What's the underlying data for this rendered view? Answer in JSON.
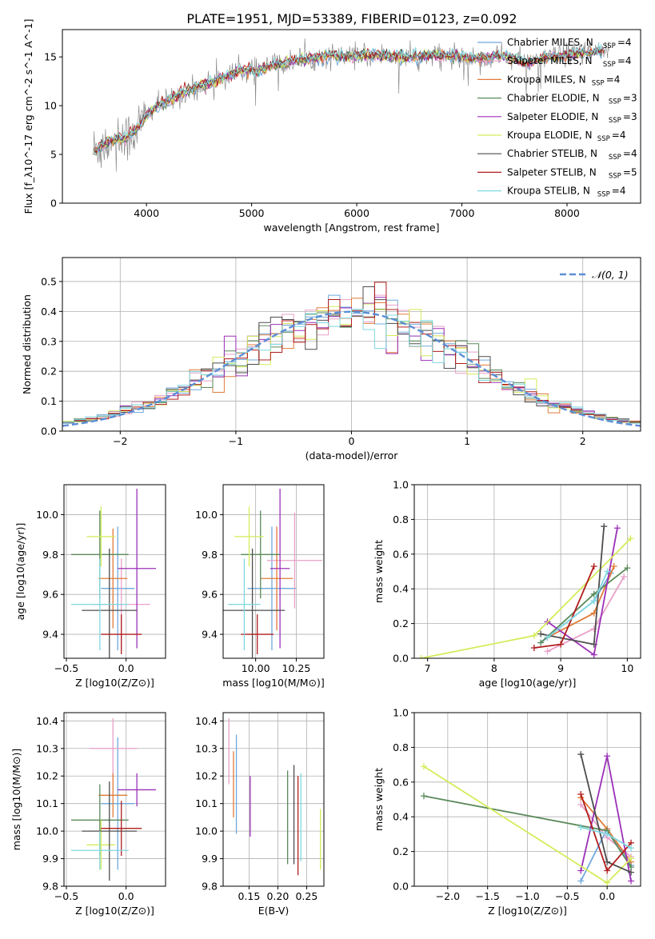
{
  "figure": {
    "title": "PLATE=1951, MJD=53389, FIBERID=0123, z=0.092"
  },
  "models": [
    {
      "name": "Chabrier MILES",
      "nssp": "4",
      "color": "#6fa8dc"
    },
    {
      "name": "Salpeter MILES",
      "nssp": "4",
      "color": "#e8a0c8"
    },
    {
      "name": "Kroupa MILES",
      "nssp": "4",
      "color": "#e07b39"
    },
    {
      "name": "Chabrier ELODIE",
      "nssp": "3",
      "color": "#5a8a5a"
    },
    {
      "name": "Salpeter ELODIE",
      "nssp": "3",
      "color": "#9b30b8"
    },
    {
      "name": "Kroupa ELODIE",
      "nssp": "4",
      "color": "#d4ec5a"
    },
    {
      "name": "Chabrier STELIB",
      "nssp": "4",
      "color": "#4d4d4d"
    },
    {
      "name": "Salpeter STELIB",
      "nssp": "5",
      "color": "#b01c1c"
    },
    {
      "name": "Kroupa STELIB",
      "nssp": "4",
      "color": "#7fd8e0"
    }
  ],
  "chart_data": [
    {
      "id": "spectrum",
      "type": "line",
      "xlabel": "wavelength [Angstrom, rest frame]",
      "ylabel": "Flux [f_λ10^-17 erg cm^-2 s^-1 A^-1]",
      "xlim": [
        3200,
        8700
      ],
      "ylim": [
        0,
        17.8
      ],
      "xticks": [
        4000,
        5000,
        6000,
        7000,
        8000
      ],
      "yticks": [
        0,
        5,
        10,
        15
      ],
      "grid": false,
      "legend": "top-right",
      "observed_color": "#808080",
      "continuum": {
        "x": [
          3480,
          3600,
          3700,
          3800,
          3900,
          4000,
          4100,
          4200,
          4300,
          4400,
          4500,
          4600,
          4700,
          4800,
          4900,
          5000,
          5100,
          5200,
          5300,
          5400,
          5500,
          5600,
          5700,
          5800,
          5900,
          6000,
          6100,
          6200,
          6300,
          6400,
          6500,
          6600,
          6700,
          6800,
          6900,
          7000,
          7100,
          7200,
          7300,
          7400,
          7500,
          7600,
          7700,
          7800,
          7900,
          8000,
          8100,
          8200,
          8300,
          8400
        ],
        "y": [
          5.3,
          6.0,
          6.6,
          6.6,
          7.5,
          9.0,
          10.0,
          10.4,
          11.0,
          11.5,
          12.0,
          12.3,
          12.7,
          13.1,
          13.6,
          13.6,
          13.7,
          14.1,
          14.3,
          14.6,
          14.8,
          14.9,
          15.0,
          15.2,
          15.0,
          15.2,
          15.1,
          15.2,
          15.1,
          15.0,
          14.9,
          15.0,
          15.2,
          15.1,
          15.1,
          15.0,
          14.9,
          14.8,
          15.0,
          15.1,
          14.8,
          14.3,
          14.6,
          15.0,
          15.0,
          15.2,
          15.3,
          15.4,
          15.6,
          15.5
        ]
      }
    },
    {
      "id": "residuals",
      "type": "histogram",
      "xlabel": "(data-model)/error",
      "ylabel": "Normed distribution",
      "xlim": [
        -2.5,
        2.5
      ],
      "ylim": [
        0,
        0.58
      ],
      "xticks": [
        -2,
        -1,
        0,
        1,
        2
      ],
      "yticks": [
        0.0,
        0.1,
        0.2,
        0.3,
        0.4,
        0.5
      ],
      "grid": true,
      "legend": "top-right",
      "reference_label": "𝒩(0, 1)",
      "reference_color": "#5b8ed6",
      "bin_width": 0.1
    },
    {
      "id": "age-vs-Z",
      "type": "errorbar",
      "xlabel": "Z [log10(Z/Z⊙)]",
      "ylabel": "age  [log10(age/yr)]",
      "xlim": [
        -0.52,
        0.33
      ],
      "ylim": [
        9.28,
        10.15
      ],
      "xticks": [
        -0.5,
        0.0
      ],
      "yticks": [
        9.4,
        9.6,
        9.8,
        10.0
      ],
      "grid": true,
      "points": [
        {
          "x": -0.07,
          "y": 9.63,
          "xerr": 0.14,
          "yerr": 0.31
        },
        {
          "x": -0.04,
          "y": 9.55,
          "xerr": 0.24,
          "yerr": 0.23
        },
        {
          "x": -0.11,
          "y": 9.68,
          "xerr": 0.12,
          "yerr": 0.25
        },
        {
          "x": -0.22,
          "y": 9.8,
          "xerr": 0.24,
          "yerr": 0.22
        },
        {
          "x": 0.09,
          "y": 9.73,
          "xerr": 0.16,
          "yerr": 0.4
        },
        {
          "x": -0.21,
          "y": 9.89,
          "xerr": 0.12,
          "yerr": 0.15
        },
        {
          "x": -0.14,
          "y": 9.52,
          "xerr": 0.23,
          "yerr": 0.31
        },
        {
          "x": -0.04,
          "y": 9.4,
          "xerr": 0.17,
          "yerr": 0.1
        },
        {
          "x": -0.22,
          "y": 9.55,
          "xerr": 0.24,
          "yerr": 0.23
        }
      ]
    },
    {
      "id": "age-vs-mass",
      "type": "errorbar",
      "xlabel": "mass [log10(M/M⊙)]",
      "ylabel": "",
      "xlim": [
        9.8,
        10.42
      ],
      "ylim": [
        9.28,
        10.15
      ],
      "xticks": [
        10.0,
        10.25
      ],
      "yticks": [
        9.4,
        9.6,
        9.8,
        10.0
      ],
      "grid": true,
      "points": [
        {
          "x": 10.1,
          "y": 9.63,
          "xerr": 0.15,
          "yerr": 0.31
        },
        {
          "x": 10.24,
          "y": 9.77,
          "xerr": 0.17,
          "yerr": 0.24
        },
        {
          "x": 10.13,
          "y": 9.68,
          "xerr": 0.1,
          "yerr": 0.26
        },
        {
          "x": 10.03,
          "y": 9.8,
          "xerr": 0.12,
          "yerr": 0.22
        },
        {
          "x": 10.15,
          "y": 9.73,
          "xerr": 0.06,
          "yerr": 0.4
        },
        {
          "x": 9.96,
          "y": 9.89,
          "xerr": 0.09,
          "yerr": 0.15
        },
        {
          "x": 9.98,
          "y": 9.52,
          "xerr": 0.2,
          "yerr": 0.31
        },
        {
          "x": 10.01,
          "y": 9.4,
          "xerr": 0.1,
          "yerr": 0.1
        },
        {
          "x": 9.93,
          "y": 9.55,
          "xerr": 0.1,
          "yerr": 0.23
        }
      ]
    },
    {
      "id": "massweight-vs-age",
      "type": "line",
      "xlabel": "age  [log10(age/yr)]",
      "ylabel": "mass weight",
      "xlim": [
        6.8,
        10.2
      ],
      "ylim": [
        0.0,
        1.0
      ],
      "xticks": [
        7,
        8,
        9,
        10
      ],
      "yticks": [
        0.0,
        0.2,
        0.4,
        0.6,
        0.8,
        1.0
      ],
      "grid": true,
      "series": [
        {
          "x": [
            8.7,
            9.5,
            9.75
          ],
          "y": [
            0.09,
            0.33,
            0.49
          ]
        },
        {
          "x": [
            8.8,
            9.5,
            9.95
          ],
          "y": [
            0.04,
            0.17,
            0.47
          ]
        },
        {
          "x": [
            8.8,
            9.5,
            9.8
          ],
          "y": [
            0.12,
            0.26,
            0.53
          ]
        },
        {
          "x": [
            8.7,
            9.5,
            10.0
          ],
          "y": [
            0.09,
            0.37,
            0.52
          ]
        },
        {
          "x": [
            8.8,
            9.5,
            9.85
          ],
          "y": [
            0.21,
            0.02,
            0.75
          ]
        },
        {
          "x": [
            6.9,
            8.6,
            10.05
          ],
          "y": [
            0.0,
            0.13,
            0.69
          ]
        },
        {
          "x": [
            8.7,
            9.5,
            9.65
          ],
          "y": [
            0.14,
            0.08,
            0.76
          ]
        },
        {
          "x": [
            8.6,
            9.0,
            9.5
          ],
          "y": [
            0.06,
            0.08,
            0.53
          ]
        },
        {
          "x": [
            8.8,
            9.5,
            9.7
          ],
          "y": [
            0.12,
            0.33,
            0.5
          ]
        }
      ]
    },
    {
      "id": "mass-vs-Z",
      "type": "errorbar",
      "xlabel": "Z [log10(Z/Z⊙)]",
      "ylabel": "mass [log10(M/M⊙)]",
      "xlim": [
        -0.52,
        0.33
      ],
      "ylim": [
        9.8,
        10.43
      ],
      "xticks": [
        -0.5,
        0.0
      ],
      "yticks": [
        9.8,
        9.9,
        10.0,
        10.1,
        10.2,
        10.3,
        10.4
      ],
      "grid": true,
      "points": [
        {
          "x": -0.07,
          "y": 10.1,
          "xerr": 0.14,
          "yerr": 0.24
        },
        {
          "x": -0.11,
          "y": 10.3,
          "xerr": 0.2,
          "yerr": 0.11
        },
        {
          "x": -0.11,
          "y": 10.13,
          "xerr": 0.12,
          "yerr": 0.08
        },
        {
          "x": -0.22,
          "y": 10.04,
          "xerr": 0.24,
          "yerr": 0.13
        },
        {
          "x": 0.09,
          "y": 10.15,
          "xerr": 0.16,
          "yerr": 0.06
        },
        {
          "x": -0.21,
          "y": 9.95,
          "xerr": 0.12,
          "yerr": 0.09
        },
        {
          "x": -0.14,
          "y": 10.0,
          "xerr": 0.23,
          "yerr": 0.18
        },
        {
          "x": -0.04,
          "y": 10.01,
          "xerr": 0.17,
          "yerr": 0.1
        },
        {
          "x": -0.22,
          "y": 9.93,
          "xerr": 0.24,
          "yerr": 0.07
        }
      ]
    },
    {
      "id": "mass-vs-EBV",
      "type": "errorbar",
      "xlabel": "E(B-V)",
      "ylabel": "",
      "xlim": [
        0.105,
        0.28
      ],
      "ylim": [
        9.8,
        10.43
      ],
      "xticks": [
        0.15,
        0.2,
        0.25
      ],
      "yticks": [
        9.8,
        9.9,
        10.0,
        10.1,
        10.2,
        10.3,
        10.4
      ],
      "grid": true,
      "points": [
        {
          "x": 0.128,
          "y": 10.17,
          "xerr": 0.0,
          "yerr": 0.18
        },
        {
          "x": 0.115,
          "y": 10.29,
          "xerr": 0.0,
          "yerr": 0.12
        },
        {
          "x": 0.123,
          "y": 10.17,
          "xerr": 0.0,
          "yerr": 0.12
        },
        {
          "x": 0.217,
          "y": 10.05,
          "xerr": 0.0,
          "yerr": 0.17
        },
        {
          "x": 0.152,
          "y": 10.09,
          "xerr": 0.0,
          "yerr": 0.11
        },
        {
          "x": 0.274,
          "y": 9.97,
          "xerr": 0.0,
          "yerr": 0.11
        },
        {
          "x": 0.228,
          "y": 10.06,
          "xerr": 0.0,
          "yerr": 0.18
        },
        {
          "x": 0.235,
          "y": 10.02,
          "xerr": 0.0,
          "yerr": 0.18
        },
        {
          "x": 0.24,
          "y": 10.05,
          "xerr": 0.0,
          "yerr": 0.16
        }
      ]
    },
    {
      "id": "massweight-vs-Z",
      "type": "line",
      "xlabel": "Z [log10(Z/Z⊙)]",
      "ylabel": "mass weight",
      "xlim": [
        -2.42,
        0.42
      ],
      "ylim": [
        0.0,
        1.0
      ],
      "xticks": [
        -2.0,
        -1.5,
        -1.0,
        -0.5,
        0.0
      ],
      "yticks": [
        0.0,
        0.2,
        0.4,
        0.6,
        0.8,
        1.0
      ],
      "grid": true,
      "series": [
        {
          "x": [
            -0.33,
            0.0,
            0.3
          ],
          "y": [
            0.03,
            0.33,
            0.12
          ]
        },
        {
          "x": [
            -0.33,
            0.0,
            0.3
          ],
          "y": [
            0.47,
            0.28,
            0.17
          ]
        },
        {
          "x": [
            -0.33,
            0.0,
            0.3
          ],
          "y": [
            0.51,
            0.33,
            0.14
          ]
        },
        {
          "x": [
            -2.3,
            0.0,
            0.3
          ],
          "y": [
            0.52,
            0.32,
            0.11
          ]
        },
        {
          "x": [
            -0.33,
            0.0,
            0.3
          ],
          "y": [
            0.09,
            0.75,
            0.03
          ]
        },
        {
          "x": [
            -2.3,
            0.0,
            0.3
          ],
          "y": [
            0.69,
            0.02,
            0.16
          ]
        },
        {
          "x": [
            -0.33,
            0.0,
            0.3
          ],
          "y": [
            0.76,
            0.14,
            0.08
          ]
        },
        {
          "x": [
            -0.33,
            0.0,
            0.3
          ],
          "y": [
            0.53,
            0.09,
            0.25
          ]
        },
        {
          "x": [
            -0.33,
            0.0,
            0.3
          ],
          "y": [
            0.34,
            0.3,
            0.22
          ]
        }
      ]
    }
  ]
}
